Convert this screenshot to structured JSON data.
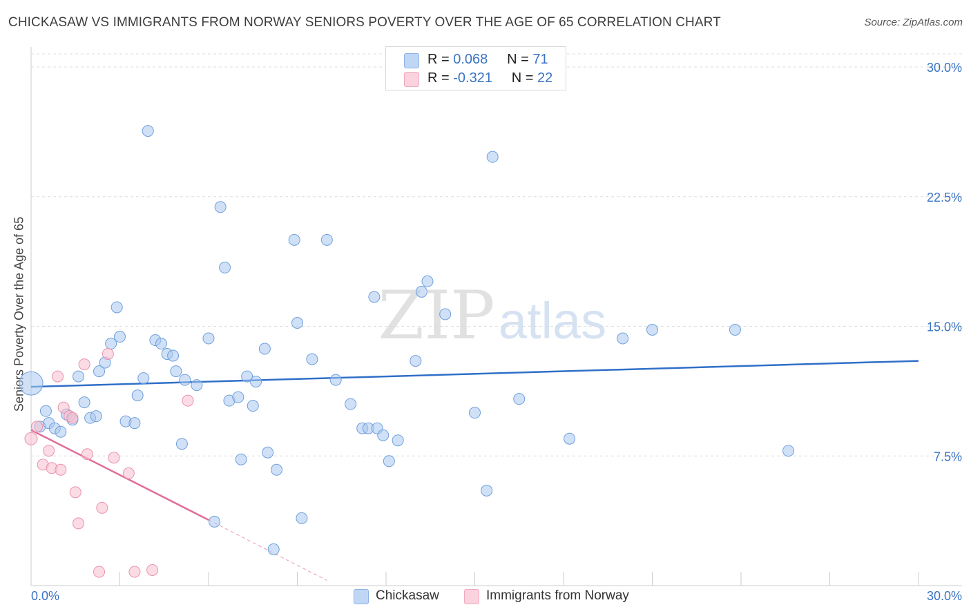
{
  "title": "CHICKASAW VS IMMIGRANTS FROM NORWAY SENIORS POVERTY OVER THE AGE OF 65 CORRELATION CHART",
  "source": "Source: ZipAtlas.com",
  "legend": {
    "r_label": "R =",
    "n_label": "N =",
    "rows": [
      {
        "r": "0.068",
        "n": "71",
        "color": "#a9c8f0"
      },
      {
        "r": "-0.321",
        "n": "22",
        "color": "#f7bfd0"
      }
    ]
  },
  "watermark": {
    "zip": "ZIP",
    "atlas": "atlas"
  },
  "chart_data": {
    "type": "scatter",
    "title": "CHICKASAW VS IMMIGRANTS FROM NORWAY SENIORS POVERTY OVER THE AGE OF 65 CORRELATION CHART",
    "xlabel": "",
    "ylabel": "Seniors Poverty Over the Age of 65",
    "xlim": [
      0,
      30
    ],
    "ylim": [
      0,
      30
    ],
    "x_tick_labels": [
      "0.0%",
      "30.0%"
    ],
    "y_tick_values": [
      7.5,
      15.0,
      22.5,
      30.0
    ],
    "y_tick_labels": [
      "7.5%",
      "15.0%",
      "22.5%",
      "30.0%"
    ],
    "grid": true,
    "series": [
      {
        "name": "Chickasaw",
        "color": "#a9c8f0",
        "stroke": "#6f9fdc",
        "trend_color": "#2f6fc8",
        "trend": {
          "x0": 0,
          "y0": 11.5,
          "x1": 30,
          "y1": 13.0
        },
        "points": [
          [
            0.0,
            11.7
          ],
          [
            0.3,
            9.2
          ],
          [
            0.5,
            10.1
          ],
          [
            0.6,
            9.4
          ],
          [
            0.8,
            9.1
          ],
          [
            1.0,
            8.9
          ],
          [
            1.2,
            9.9
          ],
          [
            1.4,
            9.6
          ],
          [
            1.6,
            12.1
          ],
          [
            1.8,
            10.6
          ],
          [
            2.0,
            9.7
          ],
          [
            2.2,
            9.8
          ],
          [
            2.3,
            12.4
          ],
          [
            2.5,
            12.9
          ],
          [
            2.7,
            14.0
          ],
          [
            2.9,
            16.1
          ],
          [
            3.0,
            14.4
          ],
          [
            3.2,
            9.5
          ],
          [
            3.5,
            9.4
          ],
          [
            3.6,
            11.0
          ],
          [
            3.8,
            12.0
          ],
          [
            3.95,
            26.3
          ],
          [
            4.2,
            14.2
          ],
          [
            4.4,
            14.0
          ],
          [
            4.6,
            13.4
          ],
          [
            4.8,
            13.3
          ],
          [
            4.9,
            12.4
          ],
          [
            5.1,
            8.2
          ],
          [
            5.2,
            11.9
          ],
          [
            5.6,
            11.6
          ],
          [
            6.0,
            14.3
          ],
          [
            6.2,
            3.7
          ],
          [
            6.4,
            21.9
          ],
          [
            6.55,
            18.4
          ],
          [
            6.7,
            10.7
          ],
          [
            7.0,
            10.9
          ],
          [
            7.1,
            7.3
          ],
          [
            7.3,
            12.1
          ],
          [
            7.5,
            10.4
          ],
          [
            7.6,
            11.8
          ],
          [
            7.9,
            13.7
          ],
          [
            8.0,
            7.7
          ],
          [
            8.2,
            2.1
          ],
          [
            8.3,
            6.7
          ],
          [
            8.9,
            20.0
          ],
          [
            9.0,
            15.2
          ],
          [
            9.15,
            3.9
          ],
          [
            9.5,
            13.1
          ],
          [
            10.0,
            20.0
          ],
          [
            10.3,
            11.9
          ],
          [
            10.8,
            10.5
          ],
          [
            11.2,
            9.1
          ],
          [
            11.4,
            9.1
          ],
          [
            11.6,
            16.7
          ],
          [
            11.7,
            9.1
          ],
          [
            11.9,
            8.7
          ],
          [
            12.1,
            7.2
          ],
          [
            12.4,
            8.4
          ],
          [
            13.0,
            13.0
          ],
          [
            13.2,
            17.0
          ],
          [
            13.4,
            17.6
          ],
          [
            14.0,
            15.7
          ],
          [
            15.0,
            10.0
          ],
          [
            15.4,
            5.5
          ],
          [
            15.6,
            24.8
          ],
          [
            16.5,
            10.8
          ],
          [
            18.2,
            8.5
          ],
          [
            20.0,
            14.3
          ],
          [
            21.0,
            14.8
          ],
          [
            23.8,
            14.8
          ],
          [
            25.6,
            7.8
          ]
        ]
      },
      {
        "name": "Immigrants from Norway",
        "color": "#f7bfd0",
        "stroke": "#e892ad",
        "trend_color": "#e06d99",
        "trend": {
          "x0": 0,
          "y0": 9.0,
          "x1": 6.0,
          "y1": 3.8
        },
        "trend_dashed_to": {
          "x": 10.0,
          "y": 0.3
        },
        "points": [
          [
            0.0,
            8.5
          ],
          [
            0.2,
            9.2
          ],
          [
            0.4,
            7.0
          ],
          [
            0.6,
            7.8
          ],
          [
            0.7,
            6.8
          ],
          [
            0.9,
            12.1
          ],
          [
            1.0,
            6.7
          ],
          [
            1.1,
            10.3
          ],
          [
            1.3,
            9.8
          ],
          [
            1.4,
            9.7
          ],
          [
            1.5,
            5.4
          ],
          [
            1.6,
            3.6
          ],
          [
            1.8,
            12.8
          ],
          [
            1.9,
            7.6
          ],
          [
            2.3,
            0.8
          ],
          [
            2.4,
            4.5
          ],
          [
            2.6,
            13.4
          ],
          [
            2.8,
            7.4
          ],
          [
            3.3,
            6.5
          ],
          [
            3.5,
            0.8
          ],
          [
            4.1,
            0.9
          ],
          [
            5.3,
            10.7
          ]
        ]
      }
    ]
  }
}
